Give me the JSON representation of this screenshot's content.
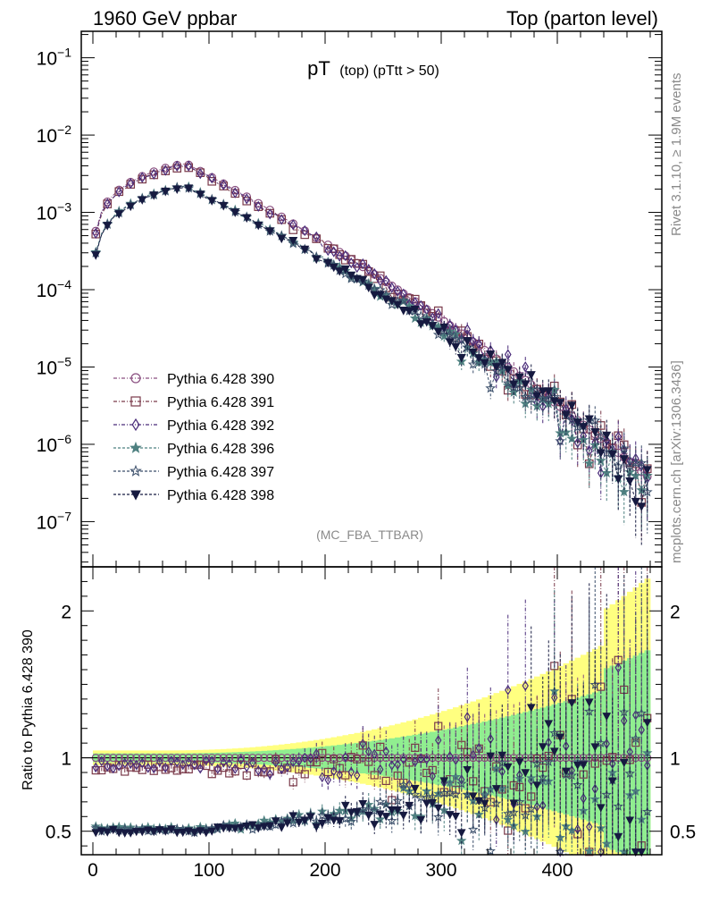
{
  "header": {
    "left": "1960 GeV ppbar",
    "right": "Top (parton level)"
  },
  "side_labels": {
    "rivet": "Rivet 3.1.10, ≥ 1.9M events",
    "mcplots": "mcplots.cern.ch [arXiv:1306.3436]"
  },
  "analysis_tag": "(MC_FBA_TTBAR)",
  "ratio_ylabel": "Ratio to Pythia 6.428 390",
  "chart_data": [
    {
      "type": "scatter",
      "panel": "main",
      "title_main": "pT",
      "title_sub": "(top) (pTtt > 50)",
      "xlabel": "",
      "ylabel": "",
      "yscale": "log",
      "xlim": [
        -10,
        490
      ],
      "ylim": [
        2.6e-08,
        0.22
      ],
      "y_ticks": [
        {
          "base": "10",
          "exp": "−1"
        },
        {
          "base": "10",
          "exp": "−2"
        },
        {
          "base": "10",
          "exp": "−3"
        },
        {
          "base": "10",
          "exp": "−4"
        },
        {
          "base": "10",
          "exp": "−5"
        },
        {
          "base": "10",
          "exp": "−6"
        },
        {
          "base": "10",
          "exp": "−7"
        }
      ],
      "legend_position": "left-middle",
      "series": [
        {
          "name": "Pythia 6.428 390",
          "color": "#8a4f80",
          "marker": "circle-open",
          "shape": {
            "p": 0.0043,
            "nfrac": 1.0,
            "seed": 11
          }
        },
        {
          "name": "Pythia 6.428 391",
          "color": "#7a3a4a",
          "marker": "square-open",
          "shape": {
            "p": 0.00405,
            "nfrac": 0.93,
            "seed": 23
          }
        },
        {
          "name": "Pythia 6.428 392",
          "color": "#4a2c7a",
          "marker": "diamond-open",
          "shape": {
            "p": 0.00405,
            "nfrac": 0.95,
            "seed": 37
          }
        },
        {
          "name": "Pythia 6.428 396",
          "color": "#4e8080",
          "marker": "star-filled",
          "shape": {
            "p": 0.0023,
            "nfrac": 0.52,
            "seed": 41
          }
        },
        {
          "name": "Pythia 6.428 397",
          "color": "#3a4e6a",
          "marker": "star-open",
          "shape": {
            "p": 0.00228,
            "nfrac": 0.51,
            "seed": 53
          }
        },
        {
          "name": "Pythia 6.428 398",
          "color": "#161a40",
          "marker": "triangle-down-filled",
          "shape": {
            "p": 0.00225,
            "nfrac": 0.5,
            "seed": 67
          }
        }
      ]
    },
    {
      "type": "scatter",
      "panel": "ratio",
      "xlabel": "",
      "ylim": [
        0.34,
        2.3
      ],
      "x_ticks": [
        0,
        100,
        200,
        300,
        400
      ],
      "y_ticks": [
        0.5,
        1,
        2
      ],
      "reference_band": {
        "inner_color": "#90ee90",
        "outer_color": "#ffff80"
      },
      "summary": [
        {
          "name": "Pythia 6.428 390",
          "ratio_low_x": 1.0,
          "ratio_high_x": 1.0
        },
        {
          "name": "Pythia 6.428 391",
          "ratio_low_x": 0.93,
          "ratio_high_x": 1.2
        },
        {
          "name": "Pythia 6.428 392",
          "ratio_low_x": 0.96,
          "ratio_high_x": 1.1
        },
        {
          "name": "Pythia 6.428 396",
          "ratio_low_x": 0.52,
          "ratio_high_x": 0.85
        },
        {
          "name": "Pythia 6.428 397",
          "ratio_low_x": 0.51,
          "ratio_high_x": 0.85
        },
        {
          "name": "Pythia 6.428 398",
          "ratio_low_x": 0.5,
          "ratio_high_x": 0.85
        }
      ]
    }
  ]
}
